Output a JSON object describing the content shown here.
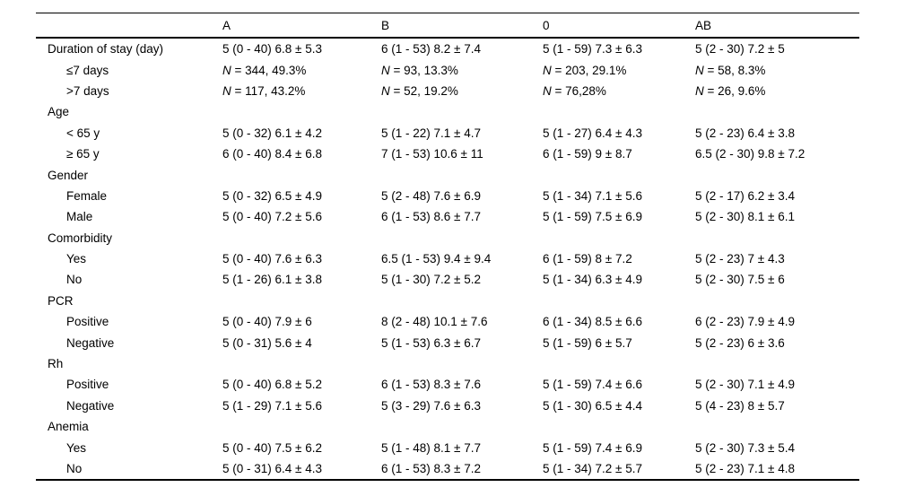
{
  "page": {
    "background": "#ffffff",
    "text_color": "#000000",
    "rule_color": "#000000"
  },
  "table": {
    "columns": [
      "",
      "A",
      "B",
      "0",
      "AB"
    ],
    "rows": [
      {
        "label": "Duration of stay (day)",
        "indent": false,
        "section": false,
        "italic_n": false,
        "cells": [
          "5 (0 - 40) 6.8 ± 5.3",
          "6 (1 - 53) 8.2 ± 7.4",
          "5 (1 - 59) 7.3 ± 6.3",
          "5 (2 - 30) 7.2 ± 5"
        ]
      },
      {
        "label": "≤7 days",
        "indent": true,
        "section": false,
        "italic_n": true,
        "cells": [
          "N = 344, 49.3%",
          "N = 93, 13.3%",
          "N = 203, 29.1%",
          "N = 58, 8.3%"
        ]
      },
      {
        "label": ">7 days",
        "indent": true,
        "section": false,
        "italic_n": true,
        "cells": [
          "N = 117, 43.2%",
          "N = 52, 19.2%",
          "N = 76,28%",
          "N = 26, 9.6%"
        ]
      },
      {
        "label": "Age",
        "indent": false,
        "section": true,
        "italic_n": false,
        "cells": [
          "",
          "",
          "",
          ""
        ]
      },
      {
        "label": "< 65 y",
        "indent": true,
        "section": false,
        "italic_n": false,
        "cells": [
          "5 (0 - 32) 6.1 ± 4.2",
          "5 (1 - 22) 7.1 ± 4.7",
          "5 (1 - 27) 6.4 ± 4.3",
          "5 (2 - 23) 6.4 ± 3.8"
        ]
      },
      {
        "label": "≥ 65 y",
        "indent": true,
        "section": false,
        "italic_n": false,
        "cells": [
          "6 (0 - 40) 8.4 ± 6.8",
          "7 (1 - 53) 10.6 ± 11",
          "6 (1 - 59) 9 ± 8.7",
          "6.5 (2 - 30) 9.8 ± 7.2"
        ]
      },
      {
        "label": "Gender",
        "indent": false,
        "section": true,
        "italic_n": false,
        "cells": [
          "",
          "",
          "",
          ""
        ]
      },
      {
        "label": "Female",
        "indent": true,
        "section": false,
        "italic_n": false,
        "cells": [
          "5 (0 - 32) 6.5 ± 4.9",
          "5 (2 - 48) 7.6 ± 6.9",
          "5 (1 - 34) 7.1 ± 5.6",
          "5 (2 - 17) 6.2 ± 3.4"
        ]
      },
      {
        "label": "Male",
        "indent": true,
        "section": false,
        "italic_n": false,
        "cells": [
          "5 (0 - 40) 7.2 ± 5.6",
          "6 (1 - 53) 8.6 ± 7.7",
          "5 (1 - 59) 7.5 ± 6.9",
          "5 (2 - 30) 8.1 ± 6.1"
        ]
      },
      {
        "label": "Comorbidity",
        "indent": false,
        "section": true,
        "italic_n": false,
        "cells": [
          "",
          "",
          "",
          ""
        ]
      },
      {
        "label": "Yes",
        "indent": true,
        "section": false,
        "italic_n": false,
        "cells": [
          "5 (0 - 40) 7.6 ± 6.3",
          "6.5 (1 - 53) 9.4 ± 9.4",
          "6 (1 - 59) 8 ± 7.2",
          "5 (2 - 23) 7 ± 4.3"
        ]
      },
      {
        "label": "No",
        "indent": true,
        "section": false,
        "italic_n": false,
        "cells": [
          "5 (1 - 26) 6.1 ± 3.8",
          "5 (1 - 30) 7.2 ± 5.2",
          "5 (1 - 34) 6.3 ± 4.9",
          "5 (2 - 30) 7.5 ± 6"
        ]
      },
      {
        "label": "PCR",
        "indent": false,
        "section": true,
        "italic_n": false,
        "cells": [
          "",
          "",
          "",
          ""
        ]
      },
      {
        "label": "Positive",
        "indent": true,
        "section": false,
        "italic_n": false,
        "cells": [
          "5 (0 - 40) 7.9 ± 6",
          "8 (2 - 48) 10.1 ± 7.6",
          "6 (1 - 34) 8.5 ± 6.6",
          "6 (2 - 23) 7.9 ± 4.9"
        ]
      },
      {
        "label": "Negative",
        "indent": true,
        "section": false,
        "italic_n": false,
        "cells": [
          "5 (0 - 31) 5.6 ± 4",
          "5 (1 - 53) 6.3 ± 6.7",
          "5 (1 - 59) 6 ± 5.7",
          "5 (2 - 23) 6 ± 3.6"
        ]
      },
      {
        "label": "Rh",
        "indent": false,
        "section": true,
        "italic_n": false,
        "cells": [
          "",
          "",
          "",
          ""
        ]
      },
      {
        "label": "Positive",
        "indent": true,
        "section": false,
        "italic_n": false,
        "cells": [
          "5 (0 - 40) 6.8 ± 5.2",
          "6 (1 - 53) 8.3 ± 7.6",
          "5 (1 - 59) 7.4 ± 6.6",
          "5 (2 - 30) 7.1 ± 4.9"
        ]
      },
      {
        "label": "Negative",
        "indent": true,
        "section": false,
        "italic_n": false,
        "cells": [
          "5 (1 - 29) 7.1 ± 5.6",
          "5 (3 - 29) 7.6 ± 6.3",
          "5 (1 - 30) 6.5 ± 4.4",
          "5 (4 - 23) 8 ± 5.7"
        ]
      },
      {
        "label": "Anemia",
        "indent": false,
        "section": true,
        "italic_n": false,
        "cells": [
          "",
          "",
          "",
          ""
        ]
      },
      {
        "label": "Yes",
        "indent": true,
        "section": false,
        "italic_n": false,
        "cells": [
          "5 (0 - 40) 7.5 ± 6.2",
          "5 (1 - 48) 8.1 ± 7.7",
          "5 (1 - 59) 7.4 ± 6.9",
          "5 (2 - 30) 7.3 ± 5.4"
        ]
      },
      {
        "label": "No",
        "indent": true,
        "section": false,
        "italic_n": false,
        "cells": [
          "5 (0 - 31) 6.4 ± 4.3",
          "6 (1 - 53) 8.3 ± 7.2",
          "5 (1 - 34) 7.2 ± 5.7",
          "5 (2 - 23) 7.1 ± 4.8"
        ]
      }
    ]
  }
}
